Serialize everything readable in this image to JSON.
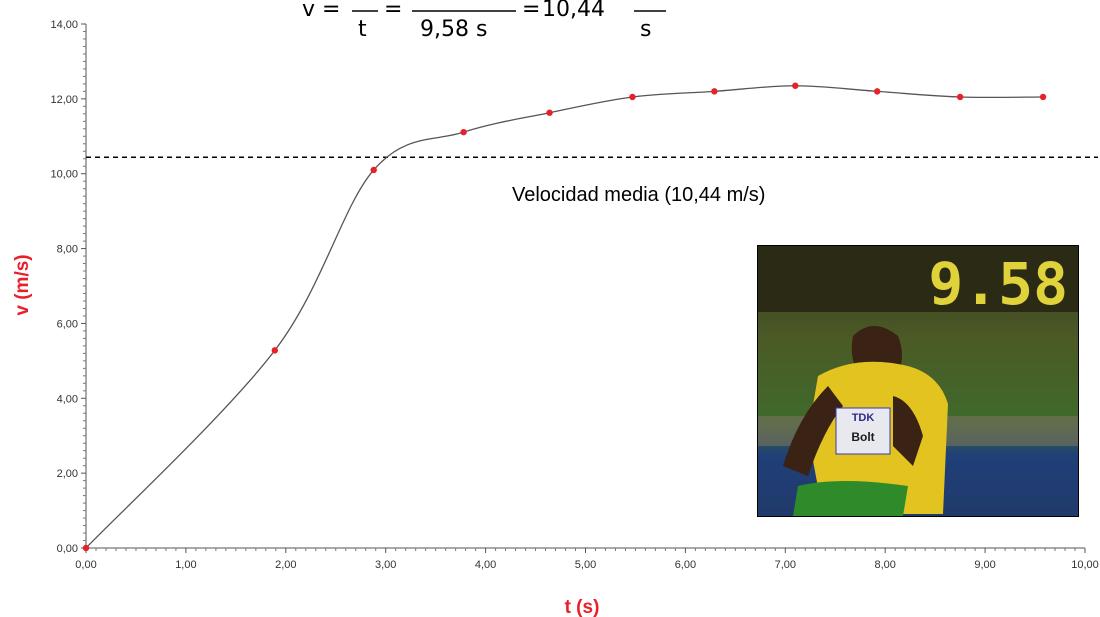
{
  "formula": {
    "lhs_symbol": "v",
    "equals": "=",
    "frac1_bottom": "t",
    "frac2_bottom": "9,58 s",
    "result": "10,44",
    "result_unit_bottom": "s"
  },
  "average_label": "Velocidad media (10,44 m/s)",
  "photo": {
    "scoreboard_text": "9.58",
    "bib_brand": "TDK",
    "bib_name": "Bolt"
  },
  "chart_data": {
    "type": "line",
    "xlabel": "t (s)",
    "ylabel": "v (m/s)",
    "xlim": [
      0,
      10
    ],
    "ylim": [
      0,
      14
    ],
    "x_ticks": [
      "0,00",
      "1,00",
      "2,00",
      "3,00",
      "4,00",
      "5,00",
      "6,00",
      "7,00",
      "8,00",
      "9,00",
      "10,00"
    ],
    "y_ticks": [
      "0,00",
      "2,00",
      "4,00",
      "6,00",
      "8,00",
      "10,00",
      "12,00",
      "14,00"
    ],
    "grid": false,
    "series": [
      {
        "points": [
          {
            "x": 0.0,
            "y": 0.0
          },
          {
            "x": 1.89,
            "y": 5.28
          },
          {
            "x": 2.88,
            "y": 10.1
          },
          {
            "x": 3.78,
            "y": 11.11
          },
          {
            "x": 4.64,
            "y": 11.63
          },
          {
            "x": 5.47,
            "y": 12.05
          },
          {
            "x": 6.29,
            "y": 12.2
          },
          {
            "x": 7.1,
            "y": 12.35
          },
          {
            "x": 7.92,
            "y": 12.2
          },
          {
            "x": 8.75,
            "y": 12.05
          },
          {
            "x": 9.58,
            "y": 12.05
          }
        ]
      }
    ],
    "reference_line": {
      "y": 10.44,
      "style": "dashed"
    },
    "colors": {
      "line": "#555555",
      "marker": "#e8202a",
      "axis_title": "#e8202a"
    }
  }
}
